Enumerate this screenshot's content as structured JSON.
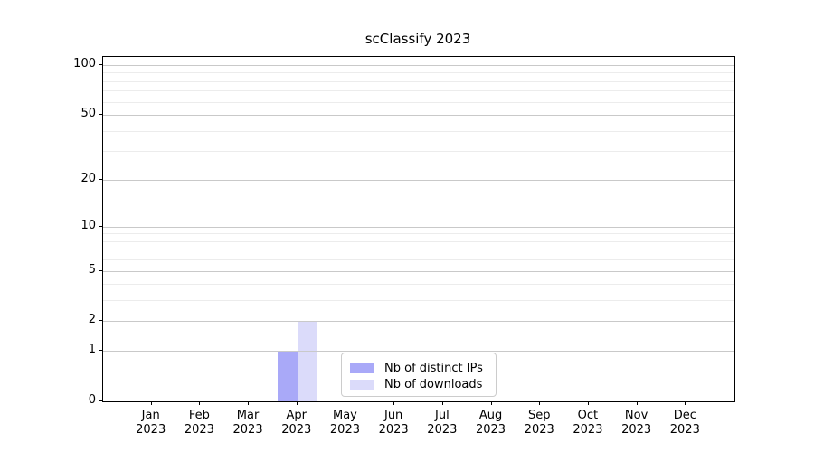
{
  "chart_data": {
    "type": "bar",
    "title": "scClassify 2023",
    "categories": [
      "Jan",
      "Feb",
      "Mar",
      "Apr",
      "May",
      "Jun",
      "Jul",
      "Aug",
      "Sep",
      "Oct",
      "Nov",
      "Dec"
    ],
    "year": "2023",
    "series": [
      {
        "name": "Nb of distinct IPs",
        "color": "#a9a9f8",
        "values": [
          0,
          0,
          0,
          1,
          0,
          0,
          0,
          0,
          0,
          0,
          0,
          0
        ]
      },
      {
        "name": "Nb of downloads",
        "color": "#dbdbfa",
        "values": [
          0,
          0,
          0,
          2,
          0,
          0,
          0,
          0,
          0,
          0,
          0,
          0
        ]
      }
    ],
    "xlabel": "",
    "ylabel": "",
    "yscale": "log1p",
    "ylim": [
      0,
      112
    ],
    "yticks": [
      0,
      1,
      2,
      5,
      10,
      20,
      50,
      100
    ],
    "yticks_minor": [
      3,
      4,
      6,
      7,
      8,
      9,
      30,
      40,
      60,
      70,
      80,
      90
    ],
    "grid": true,
    "legend_position": "lower center",
    "colors": {
      "background": "#ffffff",
      "spine": "#000000",
      "grid_major": "#c9c9c9",
      "grid_minor": "#ececec",
      "text": "#000000",
      "legend_border": "#cccccc"
    }
  }
}
